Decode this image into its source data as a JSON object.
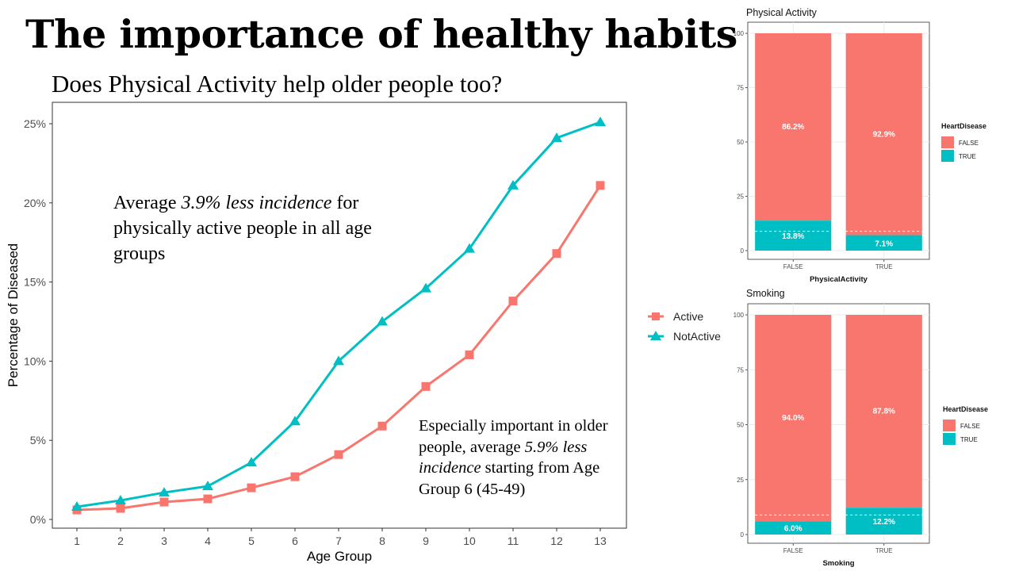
{
  "slide": {
    "title": "The importance of healthy habits",
    "subtitle": "Does Physical Activity help older people too?",
    "note_1": {
      "pre": "Average ",
      "em": "3.9% less incidence",
      "post": " for physically active people in all age groups"
    },
    "note_2": {
      "pre": "Especially important in older people, average ",
      "em": "5.9% less incidence",
      "post": " starting from Age Group 6 (45-49)"
    }
  },
  "colors": {
    "active": "#F8766D",
    "notactive": "#00BFC4"
  },
  "chart_data": [
    {
      "type": "line",
      "xlabel": "Age Group",
      "ylabel": "Percentage of Diseased",
      "x": [
        1,
        2,
        3,
        4,
        5,
        6,
        7,
        8,
        9,
        10,
        11,
        12,
        13
      ],
      "ylim": [
        0,
        25
      ],
      "yticks": [
        "0%",
        "5%",
        "10%",
        "15%",
        "20%",
        "25%"
      ],
      "grid": false,
      "legend": "right",
      "series": [
        {
          "name": "Active",
          "marker": "square",
          "color": "#F8766D",
          "values": [
            0.6,
            0.7,
            1.1,
            1.3,
            2.0,
            2.7,
            4.1,
            5.9,
            8.4,
            10.4,
            13.8,
            16.8,
            21.1
          ]
        },
        {
          "name": "NotActive",
          "marker": "triangle",
          "color": "#00BFC4",
          "values": [
            0.8,
            1.2,
            1.7,
            2.1,
            3.6,
            6.2,
            10.0,
            12.5,
            14.6,
            17.1,
            21.1,
            24.1,
            25.1
          ]
        }
      ]
    },
    {
      "type": "bar",
      "stacked": true,
      "title": "Physical Activity",
      "xlabel": "PhysicalActivity",
      "categories": [
        "FALSE",
        "TRUE"
      ],
      "ylim": [
        0,
        100
      ],
      "yticks": [
        "0",
        "25",
        "50",
        "75",
        "100"
      ],
      "legend_title": "HeartDisease",
      "series": [
        {
          "name": "TRUE",
          "color": "#00BFC4",
          "values": [
            13.8,
            7.1
          ],
          "labels": [
            "13.8%",
            "7.1%"
          ]
        },
        {
          "name": "FALSE",
          "color": "#F8766D",
          "values": [
            86.2,
            92.9
          ],
          "labels": [
            "86.2%",
            "92.9%"
          ]
        }
      ],
      "reference_line": 8.9
    },
    {
      "type": "bar",
      "stacked": true,
      "title": "Smoking",
      "xlabel": "Smoking",
      "categories": [
        "FALSE",
        "TRUE"
      ],
      "ylim": [
        0,
        100
      ],
      "yticks": [
        "0",
        "25",
        "50",
        "75",
        "100"
      ],
      "legend_title": "HeartDisease",
      "series": [
        {
          "name": "TRUE",
          "color": "#00BFC4",
          "values": [
            6.0,
            12.2
          ],
          "labels": [
            "6.0%",
            "12.2%"
          ]
        },
        {
          "name": "FALSE",
          "color": "#F8766D",
          "values": [
            94.0,
            87.8
          ],
          "labels": [
            "94.0%",
            "87.8%"
          ]
        }
      ],
      "reference_line": 8.9
    }
  ]
}
